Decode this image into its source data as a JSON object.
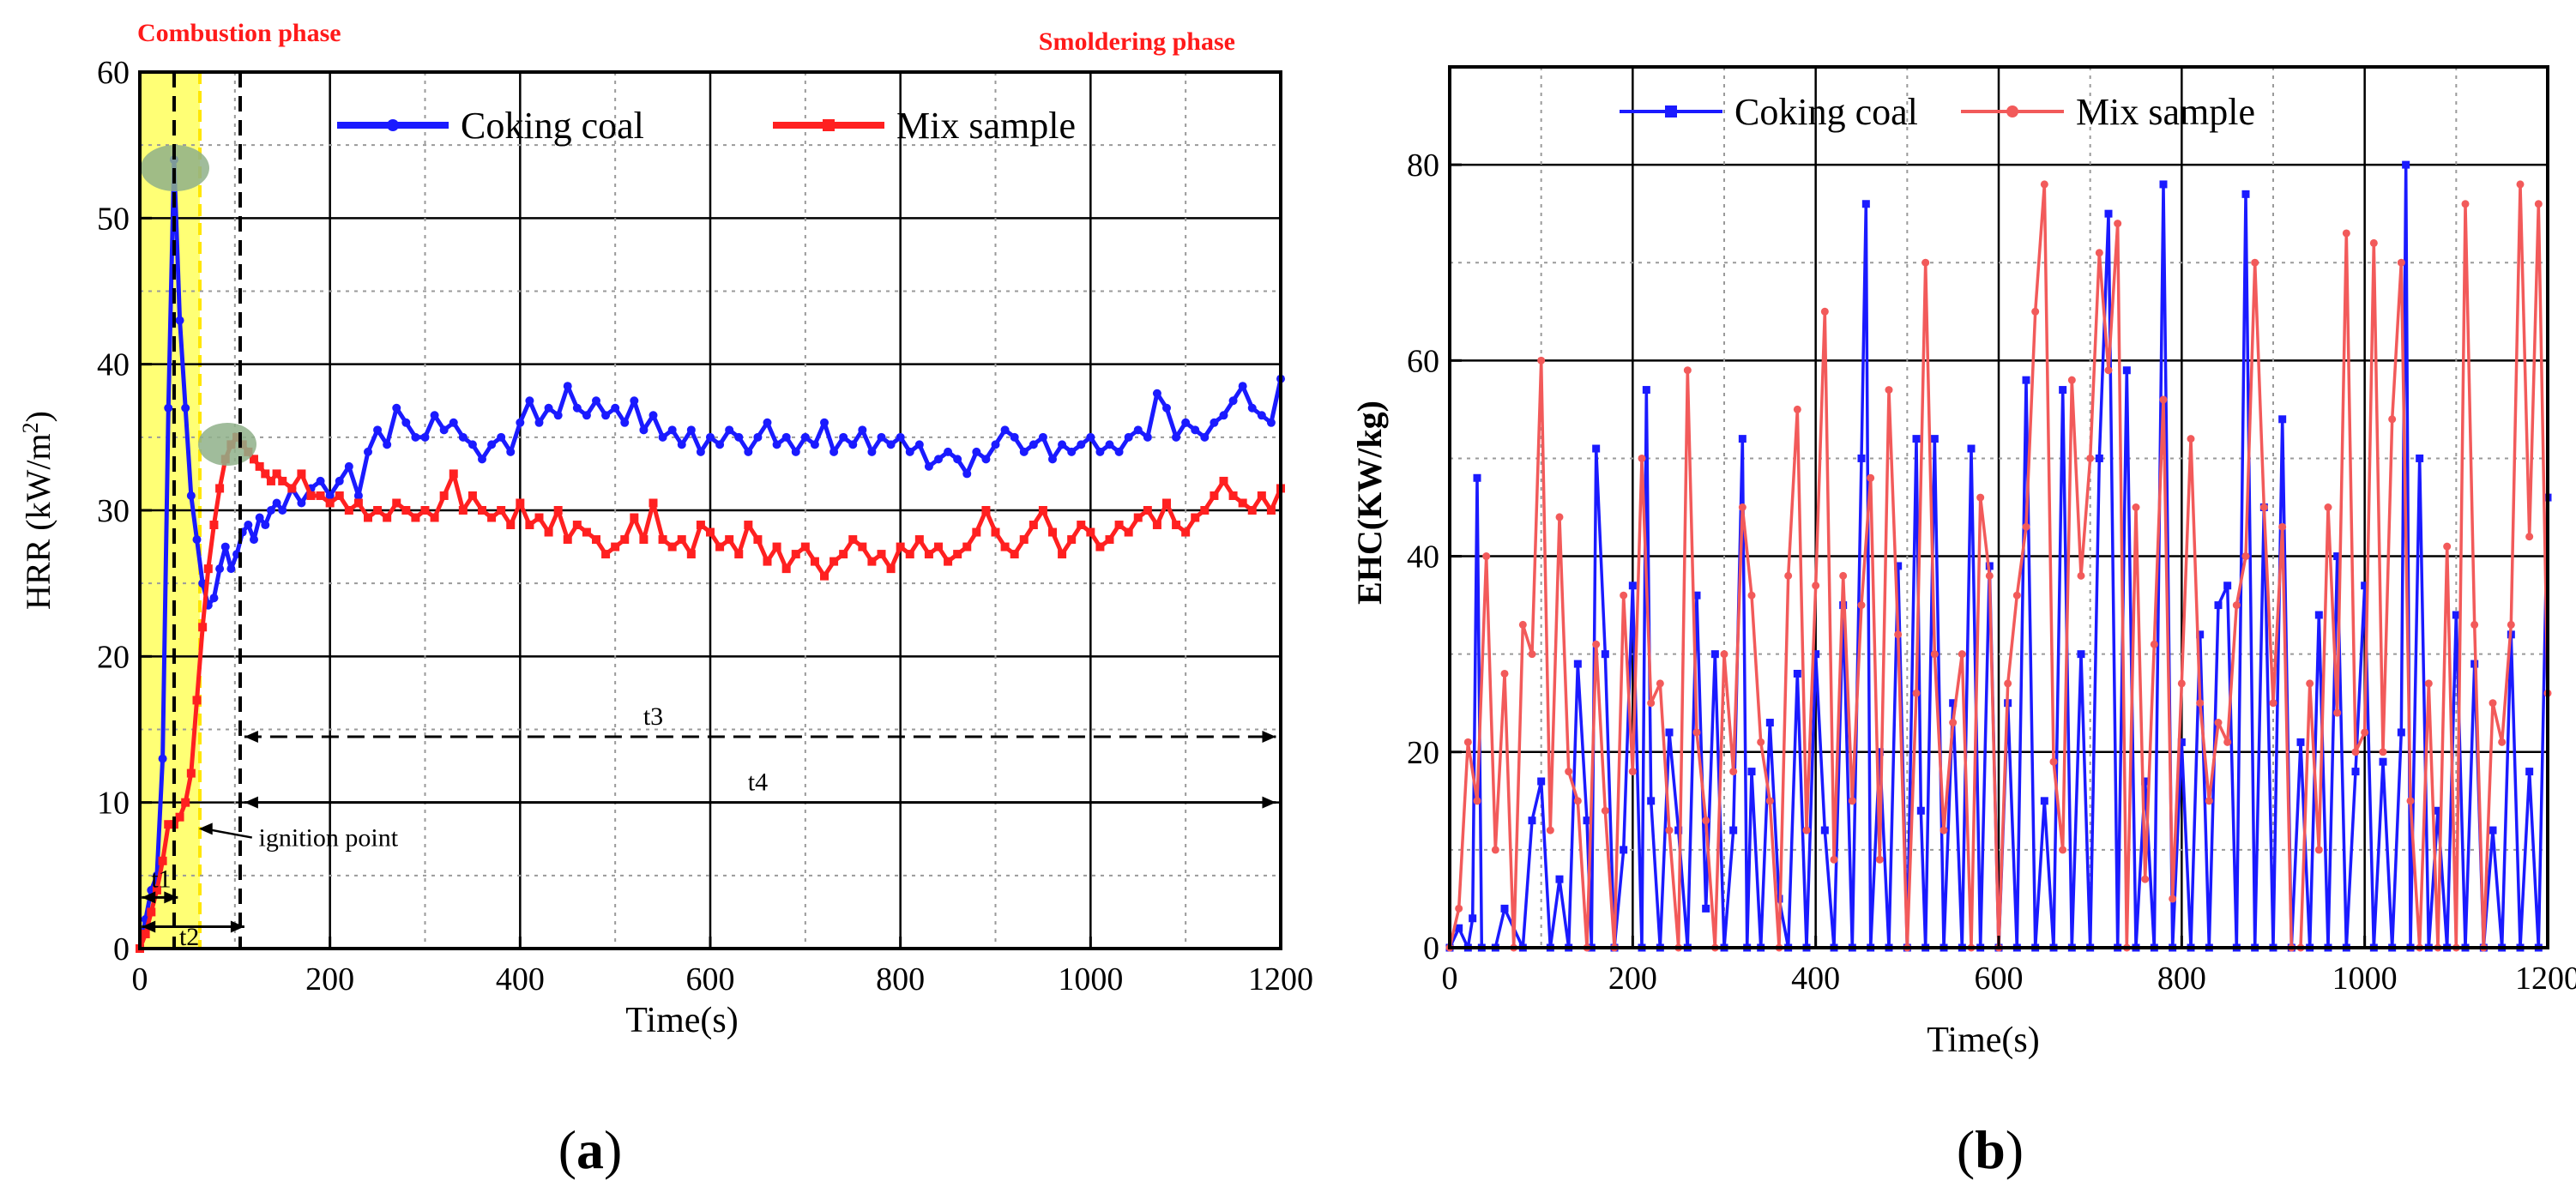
{
  "colors": {
    "coking": "#1a1aff",
    "mix": "#ff2020",
    "mix_light": "#f25a5a",
    "phase_text": "#ff1a1a",
    "annot_red": "#e21a1a",
    "yellow_band": "#ffff66",
    "green_marker": "#8fb08a"
  },
  "chart_data": [
    {
      "id": "a",
      "type": "line",
      "panel_label": "(a)",
      "panel_letter": "a",
      "xlabel": "Time(s)",
      "ylabel": "HRR (kW/m",
      "ylabel_sup": "2",
      "ylabel_close": ")",
      "xlim": [
        0,
        1200
      ],
      "ylim": [
        0,
        60
      ],
      "xticks": [
        "0",
        "200",
        "400",
        "600",
        "800",
        "1000",
        "1200"
      ],
      "yticks": [
        "0",
        "10",
        "20",
        "30",
        "40",
        "50",
        "60"
      ],
      "grid": true,
      "legend_position": "top-center",
      "phase_labels": {
        "left": "Combustion phase",
        "right": "Smoldering phase"
      },
      "annotations": {
        "ignition": "ignition point",
        "t1": "t1",
        "t2": "t2",
        "t3": "t3",
        "t4": "t4"
      },
      "series": [
        {
          "name": "Coking coal",
          "t": [
            0,
            6,
            12,
            18,
            24,
            30,
            36,
            42,
            48,
            54,
            60,
            66,
            72,
            78,
            84,
            90,
            96,
            102,
            108,
            114,
            120,
            126,
            132,
            138,
            144,
            150,
            160,
            170,
            180,
            190,
            200,
            210,
            220,
            230,
            240,
            250,
            260,
            270,
            280,
            290,
            300,
            310,
            320,
            330,
            340,
            350,
            360,
            370,
            380,
            390,
            400,
            410,
            420,
            430,
            440,
            450,
            460,
            470,
            480,
            490,
            500,
            510,
            520,
            530,
            540,
            550,
            560,
            570,
            580,
            590,
            600,
            610,
            620,
            630,
            640,
            650,
            660,
            670,
            680,
            690,
            700,
            710,
            720,
            730,
            740,
            750,
            760,
            770,
            780,
            790,
            800,
            810,
            820,
            830,
            840,
            850,
            860,
            870,
            880,
            890,
            900,
            910,
            920,
            930,
            940,
            950,
            960,
            970,
            980,
            990,
            1000,
            1010,
            1020,
            1030,
            1040,
            1050,
            1060,
            1070,
            1080,
            1090,
            1100,
            1110,
            1120,
            1130,
            1140,
            1150,
            1160,
            1170,
            1180,
            1190,
            1200
          ],
          "values": [
            0,
            2,
            4,
            5,
            13,
            37,
            54,
            43,
            37,
            31,
            28,
            25,
            23.5,
            24,
            26,
            27.5,
            26,
            27,
            28.5,
            29,
            28,
            29.5,
            29,
            30,
            30.5,
            30,
            31.5,
            30.5,
            31.5,
            32,
            31,
            32,
            33,
            31,
            34,
            35.5,
            34.5,
            37,
            36,
            35,
            35,
            36.5,
            35.5,
            36,
            35,
            34.5,
            33.5,
            34.5,
            35,
            34,
            36,
            37.5,
            36,
            37,
            36.5,
            38.5,
            37,
            36.5,
            37.5,
            36.5,
            37,
            36,
            37.5,
            35.5,
            36.5,
            35,
            35.5,
            34.5,
            35.5,
            34,
            35,
            34.5,
            35.5,
            35,
            34,
            35,
            36,
            34.5,
            35,
            34,
            35,
            34.5,
            36,
            34,
            35,
            34.5,
            35.5,
            34,
            35,
            34.5,
            35,
            34,
            34.5,
            33,
            33.5,
            34,
            33.5,
            32.5,
            34,
            33.5,
            34.5,
            35.5,
            35,
            34,
            34.5,
            35,
            33.5,
            34.5,
            34,
            34.5,
            35,
            34,
            34.5,
            34,
            35,
            35.5,
            35,
            38,
            37,
            35,
            36,
            35.5,
            35,
            36,
            36.5,
            37.5,
            38.5,
            37,
            36.5,
            36,
            39
          ]
        },
        {
          "name": "Mix sample",
          "t": [
            0,
            6,
            12,
            18,
            24,
            30,
            36,
            42,
            48,
            54,
            60,
            66,
            72,
            78,
            84,
            90,
            96,
            102,
            108,
            114,
            120,
            126,
            132,
            138,
            144,
            150,
            160,
            170,
            180,
            190,
            200,
            210,
            220,
            230,
            240,
            250,
            260,
            270,
            280,
            290,
            300,
            310,
            320,
            330,
            340,
            350,
            360,
            370,
            380,
            390,
            400,
            410,
            420,
            430,
            440,
            450,
            460,
            470,
            480,
            490,
            500,
            510,
            520,
            530,
            540,
            550,
            560,
            570,
            580,
            590,
            600,
            610,
            620,
            630,
            640,
            650,
            660,
            670,
            680,
            690,
            700,
            710,
            720,
            730,
            740,
            750,
            760,
            770,
            780,
            790,
            800,
            810,
            820,
            830,
            840,
            850,
            860,
            870,
            880,
            890,
            900,
            910,
            920,
            930,
            940,
            950,
            960,
            970,
            980,
            990,
            1000,
            1010,
            1020,
            1030,
            1040,
            1050,
            1060,
            1070,
            1080,
            1090,
            1100,
            1110,
            1120,
            1130,
            1140,
            1150,
            1160,
            1170,
            1180,
            1190,
            1200
          ],
          "values": [
            0,
            1,
            2.5,
            4,
            6,
            8.5,
            8.5,
            9,
            10,
            12,
            17,
            22,
            26,
            29,
            31.5,
            33.5,
            34.5,
            35,
            34.5,
            34,
            33.5,
            33,
            32.5,
            32,
            32.5,
            32,
            31.5,
            32.5,
            31,
            31,
            30.5,
            31,
            30,
            30.5,
            29.5,
            30,
            29.5,
            30.5,
            30,
            29.5,
            30,
            29.5,
            31,
            32.5,
            30,
            31,
            30,
            29.5,
            30,
            29,
            30.5,
            29,
            29.5,
            28.5,
            30,
            28,
            29,
            28.5,
            28,
            27,
            27.5,
            28,
            29.5,
            28,
            30.5,
            28,
            27.5,
            28,
            27,
            29,
            28.5,
            27.5,
            28,
            27,
            29,
            28,
            26.5,
            27.5,
            26,
            27,
            27.5,
            26.5,
            25.5,
            26.5,
            27,
            28,
            27.5,
            26.5,
            27,
            26,
            27.5,
            27,
            28,
            27,
            27.5,
            26.5,
            27,
            27.5,
            28.5,
            30,
            28.5,
            27.5,
            27,
            28,
            29,
            30,
            28.5,
            27,
            28,
            29,
            28.5,
            27.5,
            28,
            29,
            28.5,
            29.5,
            30,
            29,
            30.5,
            29,
            28.5,
            29.5,
            30,
            31,
            32,
            31,
            30.5,
            30,
            31,
            30,
            31.5
          ]
        }
      ]
    },
    {
      "id": "b",
      "type": "line",
      "panel_label": "(b)",
      "panel_letter": "b",
      "xlabel": "Time(s)",
      "ylabel": "EHC(KW/kg)",
      "xlim": [
        0,
        1200
      ],
      "ylim": [
        0,
        90
      ],
      "xticks": [
        "0",
        "200",
        "400",
        "600",
        "800",
        "1000",
        "1200"
      ],
      "yticks": [
        "0",
        "20",
        "40",
        "60",
        "80"
      ],
      "grid": true,
      "legend_position": "top-center",
      "series": [
        {
          "name": "Coking coal",
          "t": [
            0,
            10,
            20,
            25,
            30,
            35,
            50,
            60,
            80,
            90,
            100,
            110,
            120,
            130,
            140,
            150,
            155,
            160,
            170,
            180,
            190,
            200,
            210,
            215,
            220,
            230,
            240,
            250,
            260,
            270,
            280,
            290,
            300,
            310,
            320,
            325,
            330,
            340,
            350,
            360,
            370,
            380,
            390,
            400,
            410,
            420,
            430,
            440,
            450,
            455,
            460,
            470,
            480,
            490,
            500,
            510,
            515,
            520,
            530,
            540,
            550,
            560,
            570,
            580,
            590,
            600,
            610,
            620,
            630,
            640,
            650,
            660,
            670,
            680,
            690,
            700,
            710,
            720,
            730,
            740,
            750,
            760,
            770,
            780,
            790,
            800,
            810,
            820,
            830,
            840,
            850,
            860,
            870,
            880,
            890,
            900,
            910,
            920,
            930,
            940,
            950,
            960,
            970,
            980,
            990,
            1000,
            1010,
            1020,
            1030,
            1040,
            1045,
            1050,
            1060,
            1070,
            1080,
            1090,
            1100,
            1110,
            1120,
            1130,
            1140,
            1150,
            1160,
            1170,
            1180,
            1190,
            1200
          ],
          "values": [
            0,
            2,
            0,
            3,
            48,
            0,
            0,
            4,
            0,
            13,
            17,
            0,
            7,
            0,
            29,
            13,
            0,
            51,
            30,
            0,
            10,
            37,
            0,
            57,
            15,
            0,
            22,
            12,
            0,
            36,
            4,
            30,
            0,
            12,
            52,
            0,
            18,
            0,
            23,
            5,
            0,
            28,
            0,
            30,
            12,
            0,
            35,
            0,
            50,
            76,
            0,
            20,
            0,
            39,
            0,
            52,
            14,
            0,
            52,
            0,
            25,
            0,
            51,
            0,
            39,
            0,
            25,
            0,
            58,
            0,
            15,
            0,
            57,
            0,
            30,
            0,
            50,
            75,
            0,
            59,
            0,
            17,
            0,
            78,
            0,
            21,
            0,
            32,
            0,
            35,
            37,
            0,
            77,
            0,
            45,
            0,
            54,
            0,
            21,
            0,
            34,
            0,
            40,
            0,
            18,
            37,
            0,
            19,
            0,
            22,
            80,
            0,
            50,
            0,
            14,
            0,
            34,
            0,
            29,
            0,
            12,
            0,
            32,
            0,
            18,
            0,
            46
          ]
        },
        {
          "name": "Mix sample",
          "t": [
            0,
            10,
            20,
            30,
            40,
            50,
            60,
            70,
            80,
            90,
            100,
            110,
            120,
            130,
            140,
            150,
            160,
            170,
            180,
            190,
            200,
            210,
            220,
            230,
            240,
            250,
            260,
            270,
            280,
            290,
            300,
            310,
            320,
            330,
            340,
            350,
            360,
            370,
            380,
            390,
            400,
            410,
            420,
            430,
            440,
            450,
            460,
            470,
            480,
            490,
            500,
            510,
            520,
            530,
            540,
            550,
            560,
            570,
            580,
            590,
            600,
            610,
            620,
            630,
            640,
            650,
            660,
            670,
            680,
            690,
            700,
            710,
            720,
            730,
            740,
            750,
            760,
            770,
            780,
            790,
            800,
            810,
            820,
            830,
            840,
            850,
            860,
            870,
            880,
            890,
            900,
            910,
            920,
            930,
            940,
            950,
            960,
            970,
            980,
            990,
            1000,
            1010,
            1020,
            1030,
            1040,
            1050,
            1060,
            1070,
            1080,
            1090,
            1100,
            1110,
            1120,
            1130,
            1140,
            1150,
            1160,
            1170,
            1180,
            1190,
            1200
          ],
          "values": [
            0,
            4,
            21,
            15,
            40,
            10,
            28,
            0,
            33,
            30,
            60,
            12,
            44,
            18,
            15,
            0,
            31,
            14,
            0,
            36,
            18,
            50,
            25,
            27,
            12,
            0,
            59,
            22,
            13,
            0,
            30,
            18,
            45,
            36,
            21,
            15,
            0,
            38,
            55,
            12,
            37,
            65,
            9,
            38,
            15,
            35,
            48,
            9,
            57,
            32,
            0,
            26,
            70,
            30,
            12,
            23,
            30,
            0,
            46,
            38,
            0,
            27,
            36,
            43,
            65,
            78,
            19,
            10,
            58,
            38,
            50,
            71,
            59,
            74,
            0,
            45,
            7,
            31,
            56,
            5,
            27,
            52,
            25,
            15,
            23,
            21,
            35,
            40,
            70,
            45,
            25,
            43,
            0,
            0,
            27,
            10,
            45,
            24,
            73,
            20,
            22,
            72,
            20,
            54,
            70,
            15,
            0,
            27,
            0,
            41,
            0,
            76,
            33,
            0,
            25,
            21,
            33,
            78,
            42,
            76,
            26
          ]
        }
      ]
    }
  ]
}
